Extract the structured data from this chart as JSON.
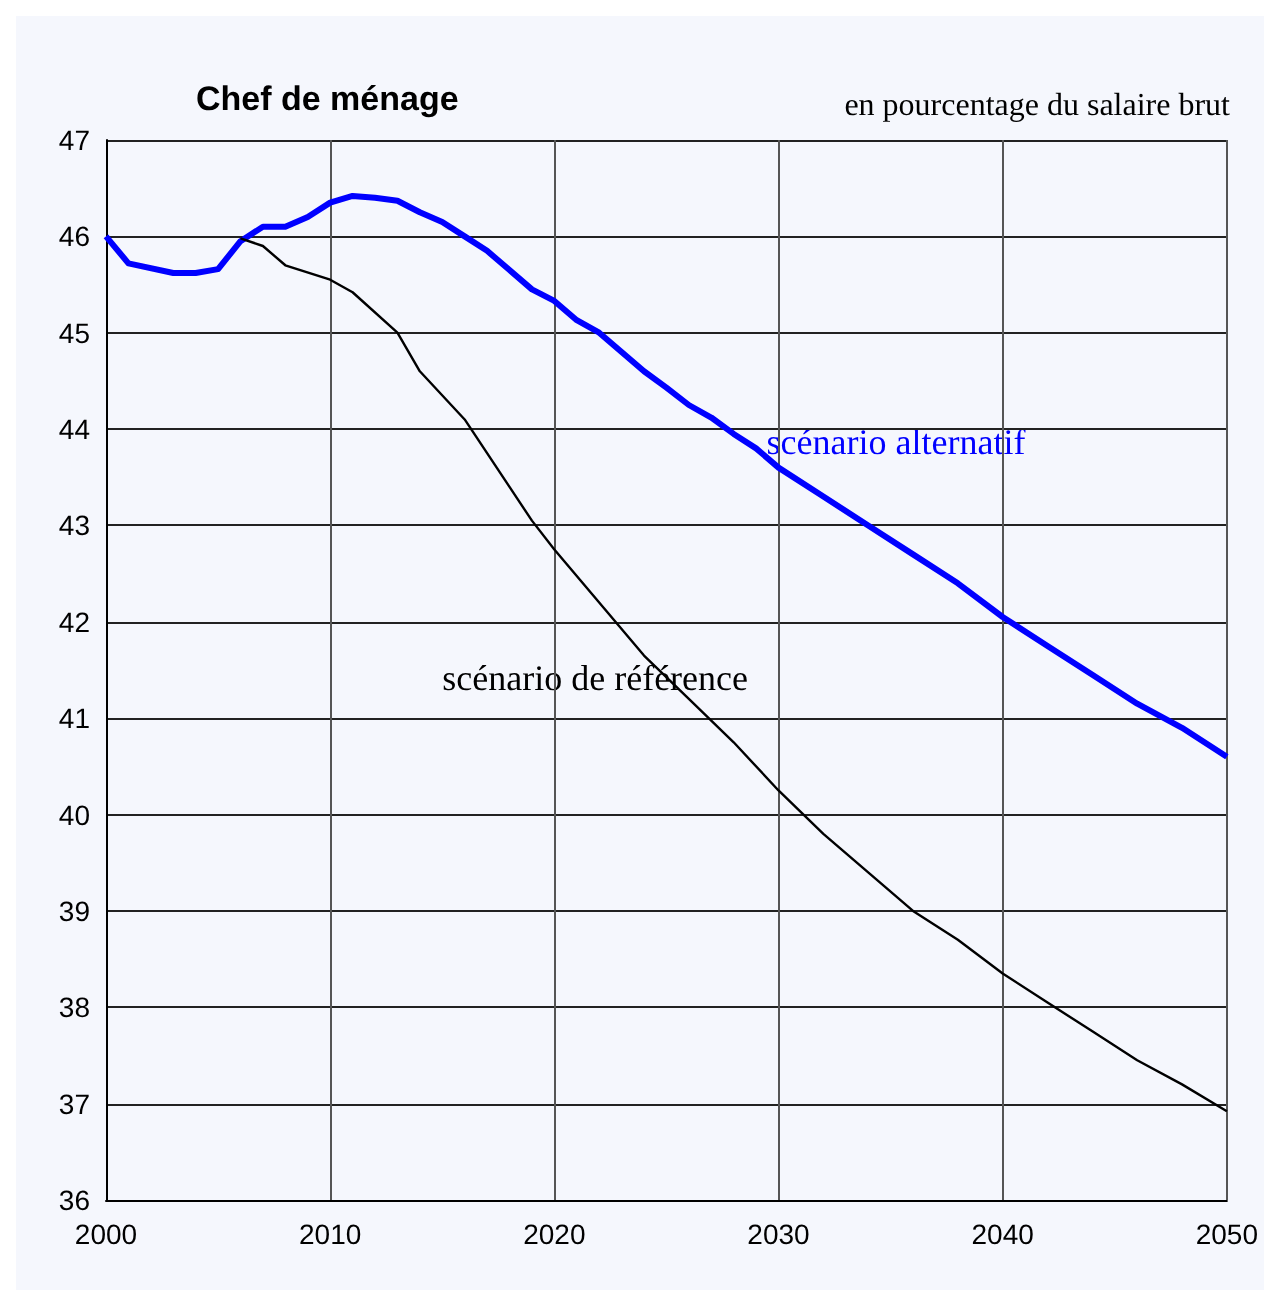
{
  "chart_data": {
    "type": "line",
    "title": "Chef de ménage",
    "subtitle": "en pourcentage du salaire brut",
    "xlim": [
      2000,
      2050
    ],
    "xticks": [
      2000,
      2010,
      2020,
      2030,
      2040,
      2050
    ],
    "ylim": [
      36,
      47
    ],
    "yticks": [
      36,
      37,
      38,
      39,
      40,
      41,
      42,
      43,
      44,
      45,
      46,
      47
    ],
    "grid": true,
    "legend": false,
    "marker": "none",
    "line_style": "solid",
    "series": [
      {
        "name": "scénario alternatif",
        "color": "#0000ff",
        "x": [
          2000,
          2001,
          2003,
          2004,
          2005,
          2006,
          2007,
          2008,
          2009,
          2010,
          2011,
          2012,
          2013,
          2014,
          2015,
          2016,
          2017,
          2018,
          2019,
          2020,
          2021,
          2022,
          2023,
          2024,
          2025,
          2026,
          2027,
          2028,
          2029,
          2030,
          2032,
          2034,
          2036,
          2038,
          2040,
          2042,
          2044,
          2046,
          2048,
          2050
        ],
        "values": [
          46.0,
          45.72,
          45.62,
          45.62,
          45.66,
          45.95,
          46.1,
          46.1,
          46.2,
          46.35,
          46.42,
          46.4,
          46.37,
          46.25,
          46.15,
          46.0,
          45.85,
          45.65,
          45.45,
          45.33,
          45.13,
          45.0,
          44.8,
          44.6,
          44.43,
          44.25,
          44.12,
          43.95,
          43.8,
          43.6,
          43.3,
          43.0,
          42.7,
          42.4,
          42.05,
          41.75,
          41.45,
          41.15,
          40.9,
          40.6
        ]
      },
      {
        "name": "scénario de référence",
        "color": "#000000",
        "x": [
          2006,
          2007,
          2008,
          2010,
          2011,
          2013,
          2014,
          2016,
          2018,
          2019,
          2020,
          2022,
          2024,
          2026,
          2028,
          2030,
          2032,
          2034,
          2036,
          2038,
          2040,
          2042,
          2044,
          2046,
          2048,
          2050
        ],
        "values": [
          45.98,
          45.9,
          45.7,
          45.55,
          45.42,
          45.0,
          44.6,
          44.1,
          43.4,
          43.05,
          42.75,
          42.2,
          41.65,
          41.2,
          40.75,
          40.25,
          39.8,
          39.4,
          39.0,
          38.7,
          38.35,
          38.05,
          37.75,
          37.45,
          37.2,
          36.92
        ]
      }
    ]
  }
}
